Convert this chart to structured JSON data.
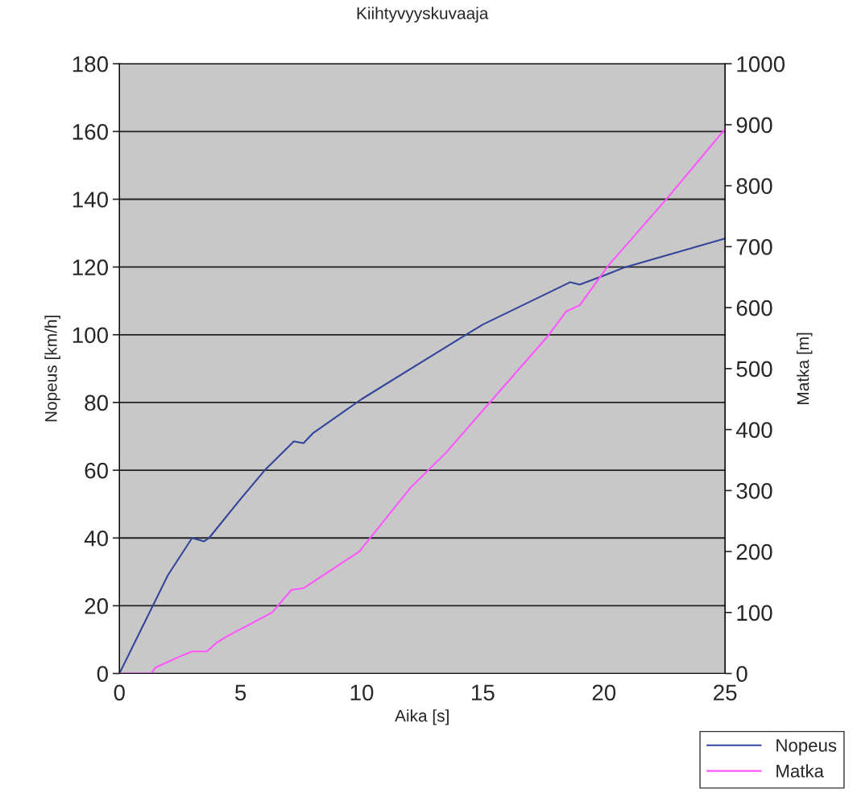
{
  "chart_data": {
    "type": "line",
    "title": "Kiihtyvyyskuvaaja",
    "xlabel": "Aika [s]",
    "ylabel": "Nopeus [km/h]",
    "y2label": "Matka [m]",
    "xlim": [
      0,
      25
    ],
    "xticks": [
      0,
      5,
      10,
      15,
      20,
      25
    ],
    "ylim": [
      0,
      180
    ],
    "yticks": [
      0,
      20,
      40,
      60,
      80,
      100,
      120,
      140,
      160,
      180
    ],
    "y2lim": [
      0,
      1000
    ],
    "y2ticks": [
      0,
      100,
      200,
      300,
      400,
      500,
      600,
      700,
      800,
      900,
      1000
    ],
    "grid": "y",
    "legend": "bottom right",
    "marker": "none",
    "line_style": "solid",
    "series": [
      {
        "name": "Nopeus",
        "color": "#33449a",
        "x": [
          0,
          1,
          2,
          3,
          3.5,
          3.7,
          5,
          6,
          7.2,
          7.6,
          8,
          10,
          14.3,
          15,
          18.6,
          19,
          20,
          20.9,
          25
        ],
        "values": [
          0,
          14.5,
          29,
          40,
          39,
          40,
          51.5,
          60,
          68.5,
          68,
          71,
          81,
          100,
          103,
          115.5,
          114.8,
          117.5,
          120,
          128.4
        ]
      },
      {
        "name": "Matka",
        "color": "#ff55ff",
        "axis": "y2",
        "x": [
          0,
          1.3,
          1.5,
          2.5,
          3,
          3.6,
          4,
          4.4,
          6.3,
          7.1,
          7.6,
          9.9,
          12,
          13.5,
          15.3,
          17.7,
          18.45,
          19,
          20.2,
          22.6,
          25
        ],
        "values": [
          0,
          0,
          10,
          28,
          36,
          36,
          50,
          60,
          100,
          137,
          140,
          200,
          304,
          363,
          445,
          554,
          594,
          604,
          670,
          779,
          893
        ]
      }
    ]
  }
}
